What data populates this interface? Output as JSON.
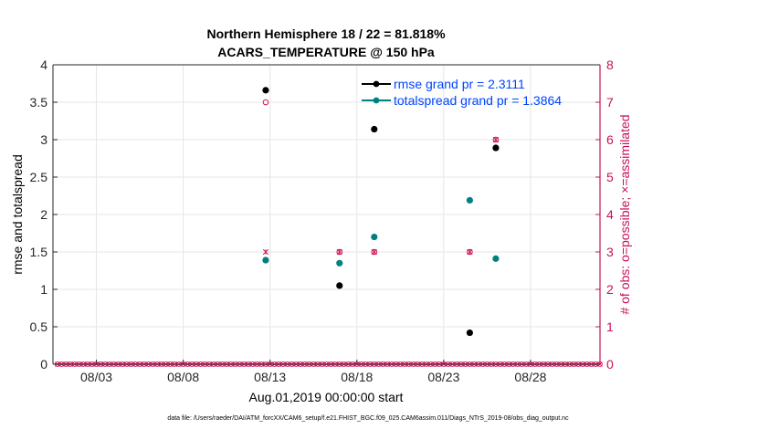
{
  "chart_data": {
    "type": "scatter",
    "title_line1": "Northern Hemisphere 18 / 22 = 81.818%",
    "title_line2": "ACARS_TEMPERATURE @ 150 hPa",
    "xlabel": "Aug.01,2019 00:00:00 start",
    "ylabel_left": "rmse and totalspread",
    "ylabel_right": "# of obs: o=possible; ×=assimilated",
    "footer": "data file: /Users/raeder/DAI/ATM_forcXX/CAM6_setup/f.e21.FHIST_BGC.f09_025.CAM6assim.011/Diags_NTrS_2019-08/obs_diag_output.nc",
    "xlim": [
      0.5,
      32
    ],
    "ylim_left": [
      0,
      4
    ],
    "ylim_right": [
      0,
      8
    ],
    "x_ticks": [
      {
        "value": 3,
        "label": "08/03"
      },
      {
        "value": 8,
        "label": "08/08"
      },
      {
        "value": 13,
        "label": "08/13"
      },
      {
        "value": 18,
        "label": "08/18"
      },
      {
        "value": 23,
        "label": "08/23"
      },
      {
        "value": 28,
        "label": "08/28"
      }
    ],
    "y_ticks_left": [
      {
        "value": 0,
        "label": "0"
      },
      {
        "value": 0.5,
        "label": "0.5"
      },
      {
        "value": 1,
        "label": "1"
      },
      {
        "value": 1.5,
        "label": "1.5"
      },
      {
        "value": 2,
        "label": "2"
      },
      {
        "value": 2.5,
        "label": "2.5"
      },
      {
        "value": 3,
        "label": "3"
      },
      {
        "value": 3.5,
        "label": "3.5"
      },
      {
        "value": 4,
        "label": "4"
      }
    ],
    "y_ticks_right": [
      {
        "value": 0,
        "label": "0"
      },
      {
        "value": 1,
        "label": "1"
      },
      {
        "value": 2,
        "label": "2"
      },
      {
        "value": 3,
        "label": "3"
      },
      {
        "value": 4,
        "label": "4"
      },
      {
        "value": 5,
        "label": "5"
      },
      {
        "value": 6,
        "label": "6"
      },
      {
        "value": 7,
        "label": "7"
      },
      {
        "value": 8,
        "label": "8"
      }
    ],
    "series": [
      {
        "name": "rmse grand pr = 2.3111",
        "color": "#000000",
        "axis": "left",
        "points": [
          [
            12.75,
            3.66
          ],
          [
            17,
            1.05
          ],
          [
            19,
            3.14
          ],
          [
            24.5,
            0.42
          ],
          [
            26,
            2.89
          ]
        ]
      },
      {
        "name": "totalspread grand pr = 1.3864",
        "color": "#008080",
        "axis": "left",
        "points": [
          [
            12.75,
            1.39
          ],
          [
            17,
            1.35
          ],
          [
            19,
            1.7
          ],
          [
            24.5,
            2.19
          ],
          [
            26,
            1.41
          ]
        ]
      }
    ],
    "obs_possible": {
      "color": "#d4145a",
      "axis": "right",
      "points": [
        [
          12.75,
          7
        ],
        [
          17,
          3
        ],
        [
          19,
          3
        ],
        [
          24.5,
          3
        ],
        [
          26,
          6
        ]
      ]
    },
    "obs_assimilated": {
      "color": "#d4145a",
      "axis": "right",
      "points": [
        [
          12.75,
          3
        ],
        [
          17,
          3
        ],
        [
          19,
          3
        ],
        [
          24.5,
          3
        ],
        [
          26,
          6
        ]
      ]
    },
    "baseline_zero_obs": {
      "start": 0.75,
      "end": 32,
      "step": 0.25
    },
    "legend_text_color": "#0044ff",
    "left_axis_color": "#000000",
    "right_axis_color": "#c8105a",
    "grid": true,
    "legend_location": "top-right"
  }
}
